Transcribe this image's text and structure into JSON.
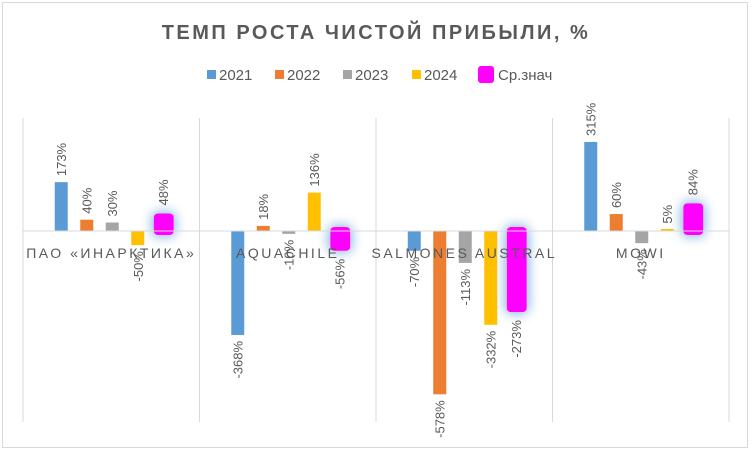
{
  "chart_data": {
    "type": "bar",
    "title": "ТЕМП РОСТА ЧИСТОЙ ПРИБЫЛИ, %",
    "categories": [
      "ПАО «ИНАРКТИКА»",
      "AQUACHILE",
      "SALMONES AUSTRAL",
      "MOWI"
    ],
    "series": [
      {
        "name": "2021",
        "color": "#5b9bd5",
        "values": [
          173,
          -368,
          -70,
          315
        ],
        "labels": [
          "173%",
          "-368%",
          "-70%",
          "315%"
        ]
      },
      {
        "name": "2022",
        "color": "#ed7d31",
        "values": [
          40,
          18,
          -578,
          60
        ],
        "labels": [
          "40%",
          "18%",
          "-578%",
          "60%"
        ]
      },
      {
        "name": "2023",
        "color": "#a5a5a5",
        "values": [
          30,
          -10,
          -113,
          -43
        ],
        "labels": [
          "30%",
          "-10%",
          "-113%",
          "-43%"
        ]
      },
      {
        "name": "2024",
        "color": "#ffc000",
        "values": [
          -50,
          136,
          -332,
          5
        ],
        "labels": [
          "-50%",
          "136%",
          "-332%",
          "5%"
        ]
      },
      {
        "name": "Ср.знач",
        "color": "#ff00ff",
        "values": [
          48,
          -56,
          -273,
          84
        ],
        "labels": [
          "48%",
          "-56%",
          "-273%",
          "84%"
        ],
        "highlighted": true
      }
    ],
    "ylim": [
      -600,
      420
    ],
    "legend": "top",
    "gridlines": false,
    "category_separators": true
  }
}
